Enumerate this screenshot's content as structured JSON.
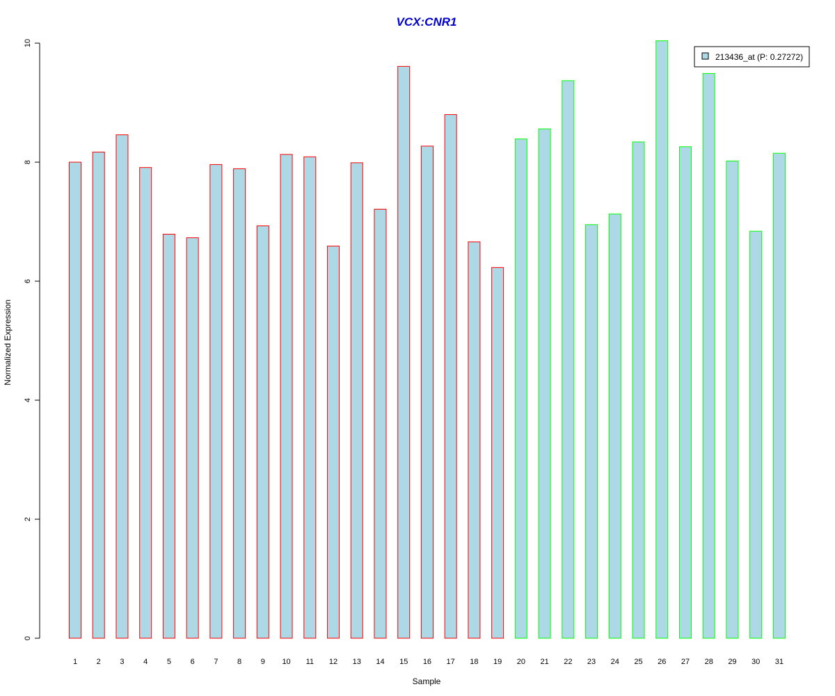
{
  "chart_data": {
    "type": "bar",
    "title": "VCX:CNR1",
    "xlabel": "Sample",
    "ylabel": "Normalized Expression",
    "ylim": [
      0,
      10
    ],
    "yticks": [
      "0",
      "2",
      "4",
      "6",
      "8",
      "10"
    ],
    "categories": [
      "1",
      "2",
      "3",
      "4",
      "5",
      "6",
      "7",
      "8",
      "9",
      "10",
      "11",
      "12",
      "13",
      "14",
      "15",
      "16",
      "17",
      "18",
      "19",
      "20",
      "21",
      "22",
      "23",
      "24",
      "25",
      "26",
      "27",
      "28",
      "29",
      "30",
      "31"
    ],
    "values": [
      8.0,
      8.17,
      8.46,
      7.91,
      6.79,
      6.73,
      7.96,
      7.89,
      6.93,
      8.13,
      8.09,
      6.59,
      7.99,
      7.21,
      9.61,
      8.27,
      8.8,
      6.66,
      6.23,
      8.39,
      8.56,
      9.37,
      6.95,
      7.13,
      8.34,
      10.04,
      8.26,
      9.49,
      8.02,
      6.84,
      8.15
    ],
    "groups": [
      "a",
      "a",
      "a",
      "a",
      "a",
      "a",
      "a",
      "a",
      "a",
      "a",
      "a",
      "a",
      "a",
      "a",
      "a",
      "a",
      "a",
      "a",
      "a",
      "b",
      "b",
      "b",
      "b",
      "b",
      "b",
      "b",
      "b",
      "b",
      "b",
      "b",
      "b"
    ],
    "grid": false,
    "legend": {
      "position": "top-right",
      "entries": [
        {
          "label": "213436_at (P: 0.27272)"
        }
      ]
    },
    "colors": {
      "fill": "#add8e6",
      "group_a_border": "#ff0000",
      "group_b_border": "#00ff00",
      "title": "#0000cc",
      "axis": "#000000"
    }
  }
}
